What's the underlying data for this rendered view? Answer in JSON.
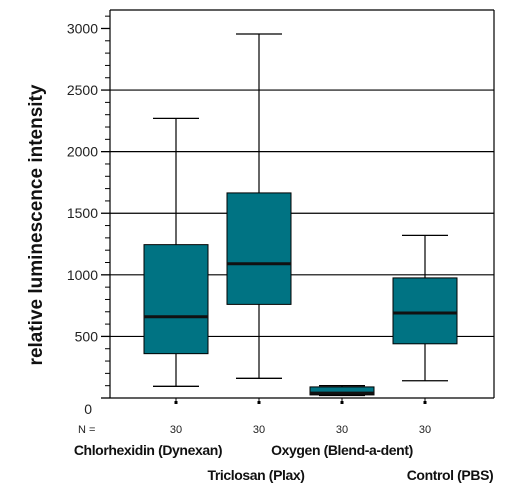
{
  "chart_data": {
    "type": "boxplot",
    "title": "",
    "xlabel": "",
    "ylabel": "relative luminescence intensity",
    "ylim": [
      0,
      3150
    ],
    "yticks": [
      0,
      500,
      1000,
      1500,
      2000,
      2500,
      3000
    ],
    "ytick_labels": [
      "0",
      "500",
      "1000",
      "1500",
      "2000",
      "2500",
      "3000"
    ],
    "grid_values": [
      500,
      1000,
      1500,
      2000,
      2500
    ],
    "n_prefix": "N =",
    "box_color": "#007383",
    "categories": [
      "Chlorhexidin (Dynexan)",
      "Triclosan (Plax)",
      "Oxygen (Blend-a-dent)",
      "Control (PBS)"
    ],
    "n": [
      "30",
      "30",
      "30",
      "30"
    ],
    "boxes": [
      {
        "whisker_low": 95,
        "q1": 360,
        "median": 660,
        "q3": 1245,
        "whisker_high": 2270
      },
      {
        "whisker_low": 160,
        "q1": 760,
        "median": 1090,
        "q3": 1665,
        "whisker_high": 2955
      },
      {
        "whisker_low": 20,
        "q1": 25,
        "median": 40,
        "q3": 90,
        "whisker_high": 100
      },
      {
        "whisker_low": 140,
        "q1": 440,
        "median": 690,
        "q3": 975,
        "whisker_high": 1320
      }
    ]
  }
}
